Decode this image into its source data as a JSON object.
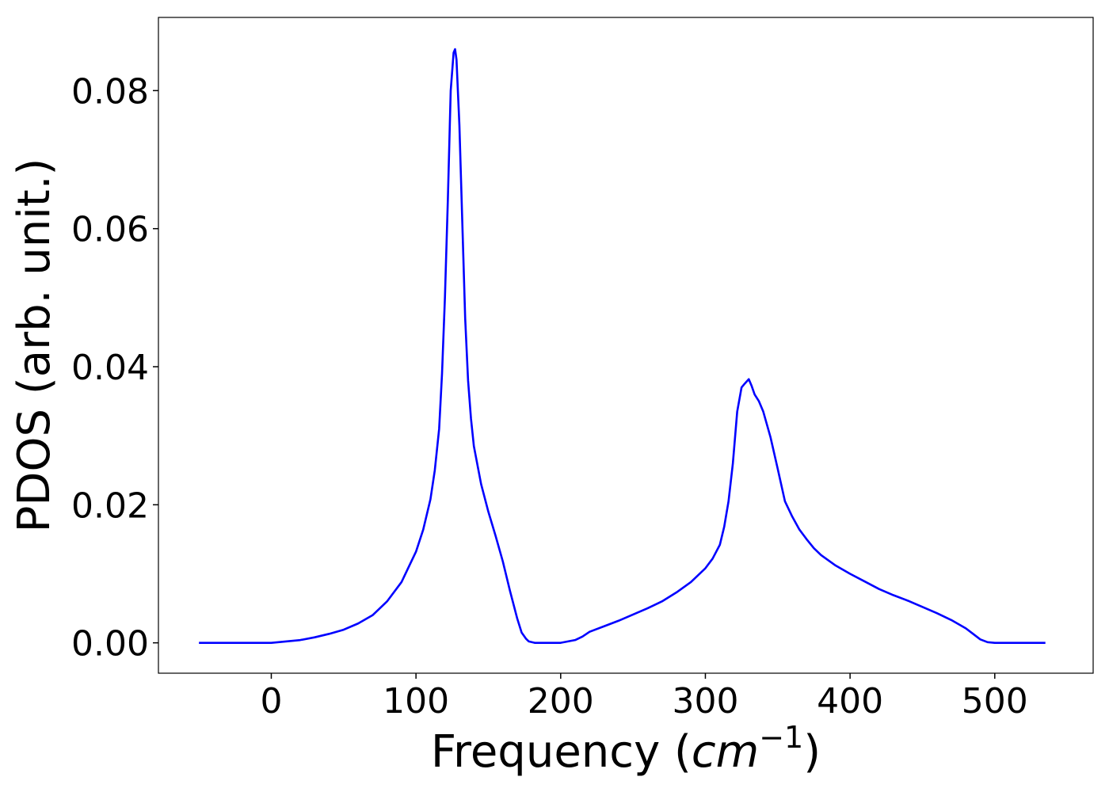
{
  "chart_data": {
    "type": "line",
    "title": "",
    "xlabel": "Frequency (cm⁻¹)",
    "xlabel_parts": {
      "prefix": "Frequency (",
      "unit_base": "cm",
      "unit_exp": "−1",
      "suffix": ")"
    },
    "ylabel": "PDOS (arb. unit.)",
    "xlim": [
      -78,
      568
    ],
    "ylim": [
      -0.0044,
      0.0906
    ],
    "xticks": [
      0,
      100,
      200,
      300,
      400,
      500
    ],
    "xtick_labels": [
      "0",
      "100",
      "200",
      "300",
      "400",
      "500"
    ],
    "yticks": [
      0.0,
      0.02,
      0.04,
      0.06,
      0.08
    ],
    "ytick_labels": [
      "0.00",
      "0.02",
      "0.04",
      "0.06",
      "0.08"
    ],
    "grid": false,
    "legend": "none",
    "series": [
      {
        "color": "#0000ff",
        "x": [
          -50,
          0,
          10,
          20,
          30,
          40,
          50,
          60,
          70,
          80,
          90,
          100,
          105,
          110,
          113,
          116,
          118,
          120,
          122,
          124,
          126,
          127,
          128,
          130,
          132,
          134,
          136,
          138,
          140,
          145,
          150,
          155,
          160,
          165,
          170,
          173,
          176,
          178,
          180,
          182,
          185,
          190,
          200,
          210,
          215,
          220,
          230,
          240,
          250,
          260,
          270,
          280,
          290,
          300,
          305,
          310,
          313,
          316,
          319,
          322,
          325,
          327,
          330,
          332,
          334,
          337,
          340,
          345,
          350,
          355,
          360,
          365,
          370,
          375,
          380,
          390,
          400,
          410,
          420,
          430,
          440,
          450,
          460,
          470,
          480,
          485,
          490,
          495,
          500,
          535
        ],
        "y": [
          0.0,
          0.0,
          0.0002,
          0.0004,
          0.0008,
          0.0013,
          0.0019,
          0.0028,
          0.004,
          0.006,
          0.0088,
          0.0132,
          0.0164,
          0.0208,
          0.025,
          0.031,
          0.039,
          0.05,
          0.064,
          0.08,
          0.0855,
          0.086,
          0.0845,
          0.075,
          0.061,
          0.047,
          0.038,
          0.0325,
          0.0285,
          0.023,
          0.019,
          0.0155,
          0.0118,
          0.0075,
          0.0035,
          0.0015,
          0.0006,
          0.0002,
          0.0001,
          0.0,
          0.0,
          0.0,
          0.0,
          0.0004,
          0.0009,
          0.0016,
          0.0024,
          0.0032,
          0.0041,
          0.005,
          0.006,
          0.0073,
          0.0088,
          0.0108,
          0.0122,
          0.0142,
          0.0168,
          0.0205,
          0.026,
          0.0335,
          0.037,
          0.0375,
          0.0382,
          0.0372,
          0.036,
          0.035,
          0.0335,
          0.0298,
          0.0252,
          0.0205,
          0.0183,
          0.0164,
          0.015,
          0.0137,
          0.0127,
          0.0112,
          0.01,
          0.0089,
          0.0078,
          0.0069,
          0.0061,
          0.0052,
          0.0043,
          0.0033,
          0.0021,
          0.0013,
          0.0005,
          0.0001,
          0.0,
          0.0
        ]
      }
    ]
  }
}
